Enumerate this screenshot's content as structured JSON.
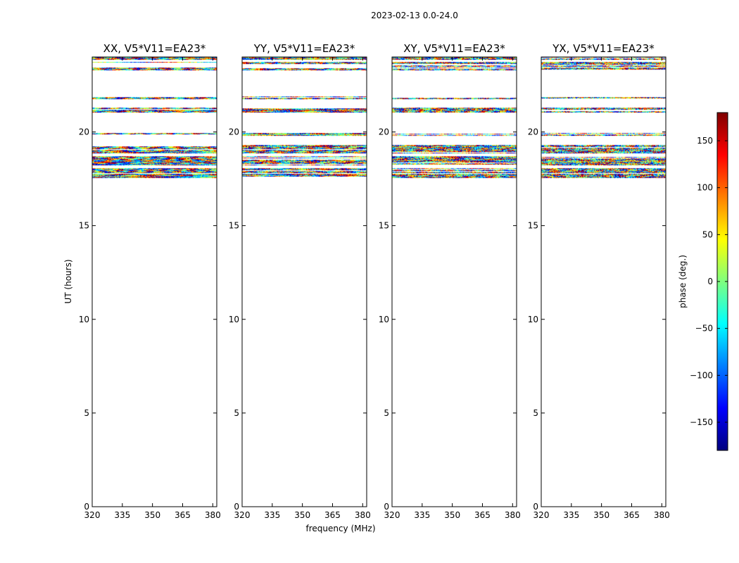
{
  "chart_data": {
    "type": "heatmap",
    "suptitle": "2023-02-13 0.0-24.0",
    "xlabel": "frequency (MHz)",
    "ylabel": "UT (hours)",
    "xlim": [
      320,
      382
    ],
    "ylim": [
      0,
      24
    ],
    "xticks": [
      320,
      335,
      350,
      365,
      380
    ],
    "yticks": [
      0,
      5,
      10,
      15,
      20
    ],
    "panels": [
      {
        "title": "XX, V5*V11=EA23*"
      },
      {
        "title": "YY, V5*V11=EA23*"
      },
      {
        "title": "XY, V5*V11=EA23*"
      },
      {
        "title": "YX, V5*V11=EA23*"
      }
    ],
    "data_time_ranges_hours": [
      [
        17.55,
        17.75
      ],
      [
        17.8,
        18.05
      ],
      [
        18.2,
        18.75
      ],
      [
        18.85,
        19.3
      ],
      [
        19.8,
        19.95
      ],
      [
        21.05,
        21.3
      ],
      [
        21.75,
        21.9
      ],
      [
        23.3,
        23.55
      ],
      [
        23.6,
        23.75
      ],
      [
        23.85,
        24.0
      ]
    ],
    "colorbar": {
      "label": "phase (deg.)",
      "range": [
        -180,
        180
      ],
      "ticks": [
        -150,
        -100,
        -50,
        0,
        50,
        100,
        150
      ],
      "tick_labels": [
        "−150",
        "−100",
        "−50",
        "0",
        "50",
        "100",
        "150"
      ],
      "colormap": [
        "#00007f",
        "#0000ff",
        "#007fff",
        "#00ffff",
        "#7fff7f",
        "#ffff00",
        "#ff7f00",
        "#ff0000",
        "#7f0000"
      ]
    }
  }
}
